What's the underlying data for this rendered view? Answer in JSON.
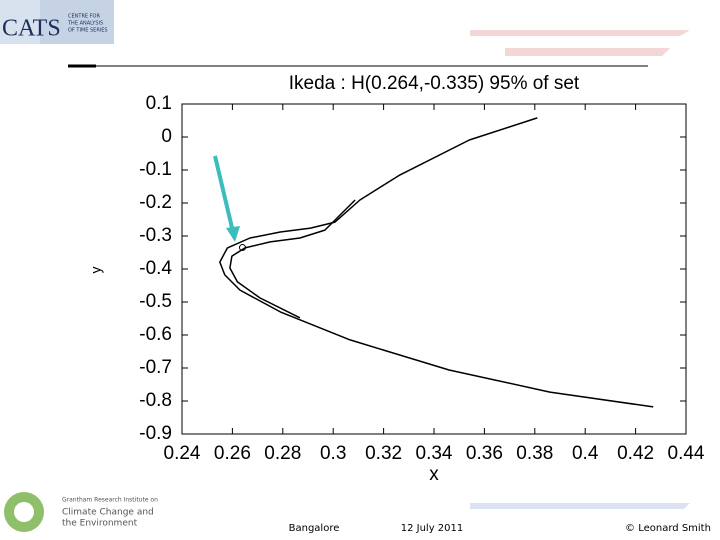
{
  "logos": {
    "cats": "CATS",
    "cats_sub": [
      "CENTRE FOR",
      "THE ANALYSIS",
      "OF TIME SERIES"
    ],
    "grantham": [
      "Grantham Research Institute on",
      "Climate Change and",
      "the Environment"
    ]
  },
  "chart_data": {
    "type": "line",
    "title": "Ikeda : H(0.264,-0.335) 95% of set",
    "xlabel": "x",
    "ylabel": "y",
    "xlim": [
      0.24,
      0.44
    ],
    "xticks": [
      0.24,
      0.26,
      0.28,
      0.3,
      0.32,
      0.34,
      0.36,
      0.38,
      0.4,
      0.42,
      0.44
    ],
    "ylim": [
      -0.9,
      0.1
    ],
    "yticks": [
      0.1,
      0,
      -0.1,
      -0.2,
      -0.3,
      -0.4,
      -0.5,
      -0.6,
      -0.7,
      -0.8,
      -0.9
    ],
    "series": [
      {
        "color": "#000000",
        "x": [
          0.381,
          0.354,
          0.3265,
          0.3106,
          0.3007,
          0.291,
          0.279,
          0.267,
          0.258,
          0.255,
          0.257,
          0.263,
          0.279,
          0.3067,
          0.346,
          0.386,
          0.427
        ],
        "values": [
          0.058,
          -0.009,
          -0.115,
          -0.191,
          -0.258,
          -0.276,
          -0.288,
          -0.306,
          -0.336,
          -0.379,
          -0.418,
          -0.464,
          -0.53,
          -0.615,
          -0.706,
          -0.773,
          -0.818
        ]
      },
      {
        "color": "#000000",
        "x": [
          0.3087,
          0.2967,
          0.2868,
          0.275,
          0.265,
          0.2598,
          0.259,
          0.262,
          0.271,
          0.2868
        ],
        "values": [
          -0.191,
          -0.282,
          -0.306,
          -0.318,
          -0.336,
          -0.361,
          -0.397,
          -0.439,
          -0.488,
          -0.548
        ]
      }
    ],
    "marker": {
      "x": 0.264,
      "y": -0.335
    }
  },
  "footer": {
    "place": "Bangalore",
    "date": "12 July 2011",
    "author": "© Leonard Smith"
  }
}
